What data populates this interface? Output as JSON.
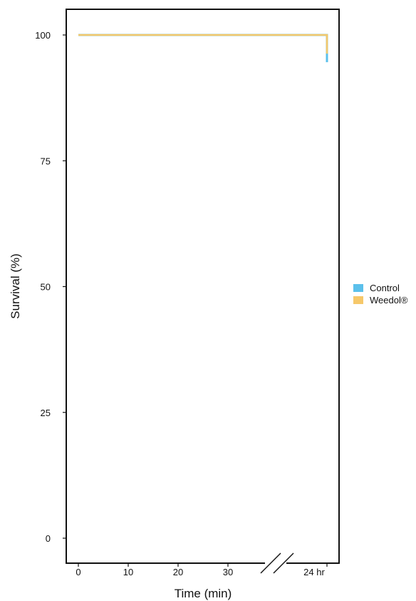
{
  "chart_data": {
    "type": "line",
    "subtype": "survival-step",
    "xlabel": "Time (min)",
    "ylabel": "Survival (%)",
    "ylim": [
      0,
      100
    ],
    "y_ticks": [
      0,
      25,
      50,
      75,
      100
    ],
    "x_ticks": [
      {
        "value": 0,
        "label": "0"
      },
      {
        "value": 10,
        "label": "10"
      },
      {
        "value": 20,
        "label": "20"
      },
      {
        "value": 30,
        "label": "30"
      },
      {
        "value": 1440,
        "label": "24 hr"
      }
    ],
    "x_axis_break": true,
    "grid": false,
    "legend_position": "right",
    "series": [
      {
        "name": "Control",
        "color": "#5BC0EB",
        "points": [
          {
            "x": 0,
            "y": 100
          },
          {
            "x": 1440,
            "y": 100
          },
          {
            "x": 1440,
            "y": 94.6
          }
        ]
      },
      {
        "name": "Weedol®",
        "color": "#F6C86A",
        "points": [
          {
            "x": 0,
            "y": 100
          },
          {
            "x": 1440,
            "y": 100
          },
          {
            "x": 1440,
            "y": 96.3
          }
        ]
      }
    ]
  }
}
